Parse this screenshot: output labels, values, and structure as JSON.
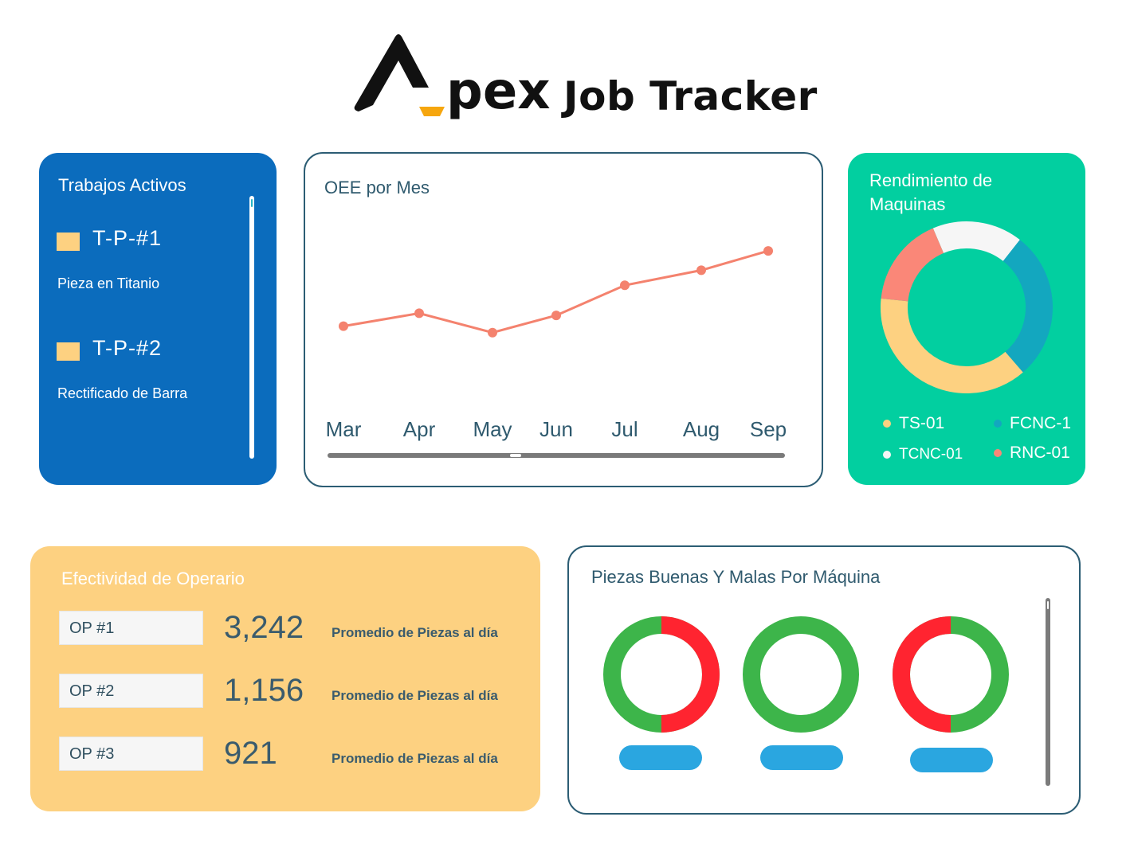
{
  "app": {
    "logo_mark": "A",
    "logo_word": "pex",
    "title": "Job Tracker"
  },
  "colors": {
    "jobs_panel": "#0b6cbd",
    "machine_panel": "#02cfa0",
    "op_panel": "#fdd181",
    "line": "#f4826e",
    "good": "#3db54a",
    "bad": "#ff2430",
    "button": "#2aa6e0"
  },
  "active_jobs": {
    "title": "Trabajos Activos",
    "items": [
      {
        "code": "T-P-#1",
        "description": "Pieza en Titanio"
      },
      {
        "code": "T-P-#2",
        "description": "Rectificado de Barra"
      }
    ]
  },
  "oee": {
    "title": "OEE por Mes"
  },
  "machine_performance": {
    "title": "Rendimiento de Maquinas",
    "legend": [
      {
        "label": "TS-01",
        "color": "#fdd181"
      },
      {
        "label": "FCNC-1",
        "color": "#13a7bf"
      },
      {
        "label": "TCNC-01",
        "color": "#f6f6f6"
      },
      {
        "label": "RNC-01",
        "color": "#fa8778"
      }
    ]
  },
  "operators": {
    "title": "Efectividad de Operario",
    "items": [
      {
        "name": "OP #1",
        "value": "3,242",
        "caption": "Promedio de Piezas al día"
      },
      {
        "name": "OP #2",
        "value": "1,156",
        "caption": "Promedio de Piezas al día"
      },
      {
        "name": "OP #3",
        "value": "921",
        "caption": "Promedio de Piezas al día"
      }
    ]
  },
  "parts": {
    "title": "Piezas Buenas Y Malas Por Máquina",
    "machines": [
      {
        "good": 0.5,
        "bad": 0.5
      },
      {
        "good": 1.0,
        "bad": 0.0
      },
      {
        "good": 0.5,
        "bad": 0.5
      }
    ]
  },
  "chart_data": [
    {
      "type": "line",
      "title": "OEE por Mes",
      "categories": [
        "Mar",
        "Apr",
        "May",
        "Jun",
        "Jul",
        "Aug",
        "Sep"
      ],
      "values": [
        42,
        48,
        39,
        47,
        61,
        68,
        77
      ],
      "ylim": [
        0,
        100
      ],
      "xlabel": "",
      "ylabel": ""
    },
    {
      "type": "pie",
      "title": "Rendimiento de Maquinas",
      "labels": [
        "TCNC-01",
        "FCNC-1",
        "TS-01",
        "RNC-01"
      ],
      "values": [
        17,
        28,
        38,
        17
      ]
    }
  ]
}
